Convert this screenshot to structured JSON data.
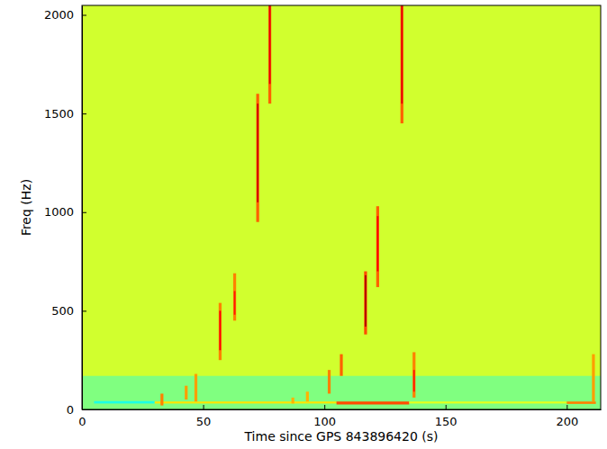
{
  "chart_data": {
    "type": "heatmap",
    "x_label": "Time since GPS 843896420 (s)",
    "y_label": "Freq (Hz)",
    "xlim": [
      0,
      214
    ],
    "ylim": [
      0,
      2048
    ],
    "xticks": [
      0,
      50,
      100,
      150,
      200
    ],
    "yticks": [
      0,
      500,
      1000,
      1500,
      2000
    ],
    "zlim": [
      0,
      1
    ],
    "cells": [
      [
        0,
        214,
        0,
        2048,
        0.58
      ],
      [
        0,
        214,
        0,
        170,
        0.5
      ],
      [
        5,
        30,
        30,
        42,
        0.4
      ],
      [
        30,
        105,
        30,
        40,
        0.65
      ],
      [
        105,
        135,
        25,
        40,
        0.8
      ],
      [
        135,
        200,
        30,
        40,
        0.6
      ],
      [
        200,
        212,
        28,
        40,
        0.75
      ],
      [
        76.9,
        78.1,
        1550,
        2048,
        0.78
      ],
      [
        77.15,
        77.85,
        1650,
        2048,
        0.9
      ],
      [
        71.9,
        73.1,
        950,
        1600,
        0.78
      ],
      [
        72.15,
        72.85,
        1050,
        1550,
        0.92
      ],
      [
        131.4,
        132.6,
        1450,
        2048,
        0.78
      ],
      [
        131.65,
        132.35,
        1550,
        2048,
        0.9
      ],
      [
        121.4,
        122.6,
        620,
        1030,
        0.78
      ],
      [
        121.65,
        122.35,
        700,
        980,
        0.88
      ],
      [
        116.4,
        117.6,
        380,
        700,
        0.8
      ],
      [
        116.65,
        117.35,
        420,
        680,
        0.95
      ],
      [
        62.4,
        63.6,
        450,
        690,
        0.75
      ],
      [
        62.65,
        63.35,
        480,
        600,
        0.85
      ],
      [
        56.4,
        57.6,
        250,
        540,
        0.75
      ],
      [
        56.65,
        57.35,
        300,
        500,
        0.88
      ],
      [
        136.4,
        137.6,
        60,
        290,
        0.75
      ],
      [
        136.65,
        137.35,
        90,
        200,
        0.85
      ],
      [
        106.4,
        107.6,
        170,
        280,
        0.78
      ],
      [
        101.4,
        102.6,
        80,
        200,
        0.75
      ],
      [
        46.4,
        47.6,
        40,
        180,
        0.72
      ],
      [
        42.4,
        43.6,
        50,
        120,
        0.72
      ],
      [
        32.4,
        33.6,
        20,
        80,
        0.75
      ],
      [
        210.4,
        211.6,
        40,
        280,
        0.72
      ],
      [
        92.4,
        93.6,
        40,
        90,
        0.7
      ],
      [
        86.4,
        87.6,
        30,
        60,
        0.7
      ]
    ]
  }
}
